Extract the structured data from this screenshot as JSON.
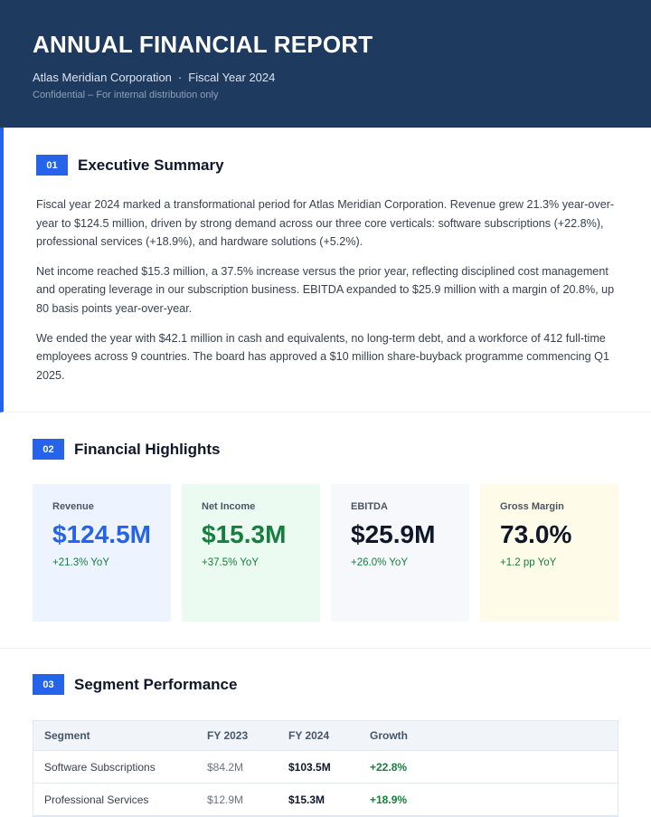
{
  "header": {
    "title": "ANNUAL FINANCIAL REPORT",
    "company": "Atlas Meridian Corporation",
    "separator": "·",
    "fiscal_year": "Fiscal Year 2024",
    "confidential": "Confidential – For internal distribution only"
  },
  "sections": [
    {
      "number": "01",
      "title": "Executive Summary",
      "paragraphs": [
        "Fiscal year 2024 marked a transformational period for Atlas Meridian Corporation. Revenue grew 21.3% year-over-year to $124.5 million, driven by strong demand across our three core verticals: software subscriptions (+22.8%), professional services (+18.9%), and hardware solutions (+5.2%).",
        "Net income reached $15.3 million, a 37.5% increase versus the prior year, reflecting disciplined cost management and operating leverage in our subscription business. EBITDA expanded to $25.9 million with a margin of 20.8%, up 80 basis points year-over-year.",
        "We ended the year with $42.1 million in cash and equivalents, no long-term debt, and a workforce of 412 full-time employees across 9 countries. The board has approved a $10 million share-buyback programme commencing Q1 2025."
      ]
    },
    {
      "number": "02",
      "title": "Financial Highlights",
      "cards": [
        {
          "label": "Revenue",
          "value": "$124.5M",
          "change": "+21.3% YoY"
        },
        {
          "label": "Net Income",
          "value": "$15.3M",
          "change": "+37.5% YoY"
        },
        {
          "label": "EBITDA",
          "value": "$25.9M",
          "change": "+26.0% YoY"
        },
        {
          "label": "Gross Margin",
          "value": "73.0%",
          "change": "+1.2 pp YoY"
        }
      ]
    },
    {
      "number": "03",
      "title": "Segment Performance",
      "table": {
        "headers": [
          "Segment",
          "FY 2023",
          "FY 2024",
          "Growth"
        ],
        "rows": [
          [
            "Software Subscriptions",
            "$84.2M",
            "$103.5M",
            "+22.8%"
          ],
          [
            "Professional Services",
            "$12.9M",
            "$15.3M",
            "+18.9%"
          ]
        ]
      }
    }
  ],
  "colors": {
    "header_bg": "#1e3a5f",
    "accent": "#2563eb",
    "positive": "#15803d"
  }
}
